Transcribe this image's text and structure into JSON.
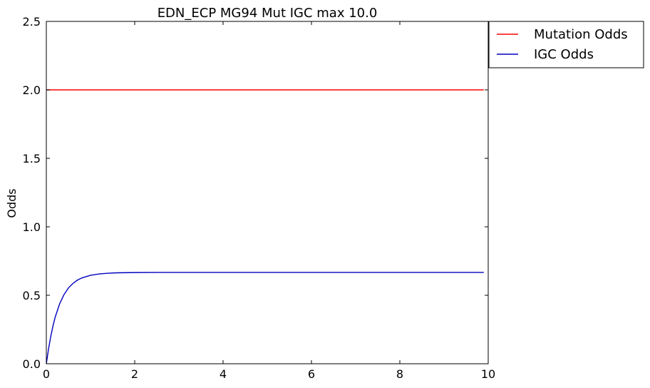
{
  "chart_data": {
    "type": "line",
    "title": "EDN_ECP MG94 Mut IGC max 10.0",
    "xlabel": "",
    "ylabel": "Odds",
    "xlim": [
      0,
      10
    ],
    "ylim": [
      0,
      2.5
    ],
    "x_ticks": [
      "0",
      "2",
      "4",
      "6",
      "8",
      "10"
    ],
    "y_ticks": [
      "0.0",
      "0.5",
      "1.0",
      "1.5",
      "2.0",
      "2.5"
    ],
    "grid": false,
    "legend_position": "outside-top-right",
    "series": [
      {
        "name": "Mutation Odds",
        "color": "#ff0000",
        "x": [
          0,
          9.9
        ],
        "y": [
          2.0,
          2.0
        ]
      },
      {
        "name": "IGC Odds",
        "color": "#0000bf",
        "x": [
          0,
          0.05,
          0.1,
          0.15,
          0.2,
          0.3,
          0.4,
          0.5,
          0.6,
          0.7,
          0.8,
          1.0,
          1.2,
          1.4,
          1.6,
          2.0,
          2.5,
          3.0,
          4.0,
          5.0,
          6.0,
          7.0,
          8.0,
          9.0,
          9.9
        ],
        "y": [
          0,
          0.108,
          0.199,
          0.275,
          0.34,
          0.437,
          0.505,
          0.553,
          0.586,
          0.61,
          0.626,
          0.646,
          0.656,
          0.661,
          0.664,
          0.666,
          0.667,
          0.667,
          0.667,
          0.667,
          0.667,
          0.667,
          0.667,
          0.667,
          0.667
        ]
      }
    ]
  }
}
